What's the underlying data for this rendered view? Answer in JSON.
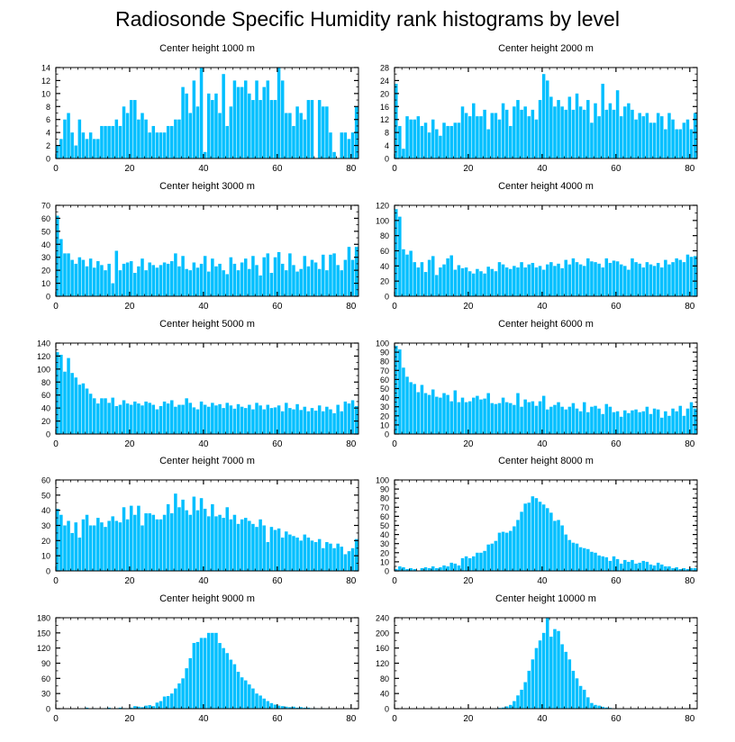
{
  "title": "Radiosonde Specific Humidity rank histograms by level",
  "colors": {
    "bar": "#00BFFF",
    "axis": "#000000",
    "background": "#FFFFFF"
  },
  "chart_data": [
    {
      "type": "bar",
      "title": "Center height 1000 m",
      "xlim": [
        0,
        82
      ],
      "ylim": [
        0,
        14
      ],
      "xticks": [
        0,
        20,
        40,
        60,
        80
      ],
      "yticks": [
        0,
        2,
        4,
        6,
        8,
        10,
        12,
        14
      ],
      "x_start": 0,
      "values": [
        2,
        3,
        6,
        7,
        4,
        2,
        6,
        4,
        3,
        4,
        3,
        3,
        5,
        5,
        5,
        5,
        6,
        5,
        8,
        7,
        9,
        9,
        6,
        7,
        6,
        4,
        5,
        4,
        4,
        4,
        5,
        5,
        6,
        6,
        11,
        10,
        7,
        12,
        8,
        14,
        1,
        10,
        9,
        10,
        7,
        13,
        5,
        8,
        12,
        11,
        11,
        12,
        10,
        9,
        12,
        9,
        11,
        12,
        9,
        9,
        14,
        12,
        7,
        7,
        5,
        8,
        7,
        6,
        9,
        9,
        0,
        9,
        8,
        8,
        4,
        1,
        0,
        4,
        4,
        3,
        4,
        8
      ]
    },
    {
      "type": "bar",
      "title": "Center height 2000 m",
      "xlim": [
        0,
        82
      ],
      "ylim": [
        0,
        28
      ],
      "xticks": [
        0,
        20,
        40,
        60,
        80
      ],
      "yticks": [
        0,
        4,
        8,
        12,
        16,
        20,
        24,
        28
      ],
      "x_start": 0,
      "values": [
        23,
        10,
        3,
        13,
        12,
        12,
        13,
        10,
        11,
        8,
        12,
        9,
        7,
        11,
        10,
        10,
        11,
        11,
        16,
        14,
        13,
        17,
        13,
        13,
        15,
        9,
        14,
        14,
        12,
        17,
        15,
        10,
        16,
        18,
        15,
        16,
        13,
        15,
        12,
        18,
        26,
        24,
        19,
        16,
        18,
        16,
        15,
        19,
        15,
        20,
        16,
        15,
        18,
        11,
        17,
        13,
        23,
        15,
        17,
        15,
        21,
        13,
        16,
        17,
        15,
        12,
        14,
        13,
        14,
        11,
        11,
        14,
        13,
        9,
        14,
        12,
        9,
        9,
        11,
        12,
        9,
        14
      ]
    },
    {
      "type": "bar",
      "title": "Center height 3000 m",
      "xlim": [
        0,
        82
      ],
      "ylim": [
        0,
        70
      ],
      "xticks": [
        0,
        20,
        40,
        60,
        80
      ],
      "yticks": [
        0,
        10,
        20,
        30,
        40,
        50,
        60,
        70
      ],
      "x_start": 0,
      "values": [
        62,
        44,
        33,
        33,
        28,
        25,
        30,
        28,
        23,
        29,
        22,
        27,
        24,
        20,
        25,
        10,
        35,
        20,
        25,
        26,
        27,
        18,
        23,
        29,
        20,
        26,
        24,
        22,
        24,
        26,
        25,
        27,
        33,
        23,
        31,
        21,
        20,
        26,
        22,
        25,
        31,
        19,
        29,
        23,
        25,
        20,
        17,
        30,
        25,
        20,
        26,
        29,
        21,
        31,
        24,
        16,
        30,
        33,
        18,
        30,
        34,
        25,
        20,
        33,
        24,
        19,
        21,
        31,
        23,
        28,
        26,
        21,
        32,
        20,
        32,
        33,
        24,
        20,
        28,
        38,
        28,
        38
      ]
    },
    {
      "type": "bar",
      "title": "Center height 4000 m",
      "xlim": [
        0,
        82
      ],
      "ylim": [
        0,
        120
      ],
      "xticks": [
        0,
        20,
        40,
        60,
        80
      ],
      "yticks": [
        0,
        20,
        40,
        60,
        80,
        100,
        120
      ],
      "x_start": 0,
      "values": [
        115,
        105,
        62,
        55,
        60,
        45,
        38,
        45,
        32,
        48,
        53,
        28,
        38,
        42,
        50,
        54,
        35,
        41,
        37,
        38,
        33,
        30,
        36,
        33,
        30,
        39,
        36,
        33,
        45,
        42,
        38,
        36,
        40,
        38,
        45,
        38,
        42,
        44,
        38,
        40,
        35,
        42,
        45,
        40,
        43,
        37,
        48,
        42,
        50,
        45,
        42,
        40,
        50,
        46,
        45,
        43,
        38,
        50,
        44,
        47,
        46,
        42,
        40,
        35,
        50,
        45,
        43,
        38,
        45,
        42,
        40,
        44,
        38,
        48,
        42,
        45,
        50,
        48,
        45,
        55,
        52,
        53
      ]
    },
    {
      "type": "bar",
      "title": "Center height 5000 m",
      "xlim": [
        0,
        82
      ],
      "ylim": [
        0,
        140
      ],
      "xticks": [
        0,
        20,
        40,
        60,
        80
      ],
      "yticks": [
        0,
        20,
        40,
        60,
        80,
        100,
        120,
        140
      ],
      "x_start": 0,
      "values": [
        126,
        122,
        96,
        117,
        94,
        87,
        76,
        78,
        70,
        62,
        55,
        47,
        55,
        55,
        48,
        56,
        43,
        45,
        52,
        47,
        45,
        50,
        47,
        44,
        50,
        48,
        45,
        38,
        43,
        50,
        47,
        52,
        42,
        45,
        45,
        55,
        48,
        41,
        38,
        50,
        45,
        42,
        48,
        44,
        46,
        40,
        48,
        44,
        39,
        46,
        42,
        40,
        45,
        38,
        48,
        44,
        38,
        45,
        40,
        41,
        44,
        35,
        48,
        40,
        38,
        46,
        37,
        42,
        35,
        40,
        36,
        44,
        35,
        42,
        38,
        32,
        45,
        35,
        50,
        47,
        52,
        43
      ]
    },
    {
      "type": "bar",
      "title": "Center height 6000 m",
      "xlim": [
        0,
        82
      ],
      "ylim": [
        0,
        100
      ],
      "xticks": [
        0,
        20,
        40,
        60,
        80
      ],
      "yticks": [
        0,
        10,
        20,
        30,
        40,
        50,
        60,
        70,
        80,
        90,
        100
      ],
      "x_start": 0,
      "values": [
        97,
        93,
        73,
        63,
        57,
        55,
        46,
        54,
        45,
        43,
        49,
        41,
        40,
        45,
        43,
        36,
        48,
        35,
        40,
        35,
        36,
        40,
        42,
        38,
        39,
        45,
        34,
        33,
        34,
        40,
        35,
        34,
        32,
        45,
        30,
        38,
        35,
        36,
        31,
        36,
        42,
        27,
        30,
        32,
        35,
        30,
        27,
        30,
        34,
        28,
        25,
        35,
        24,
        30,
        31,
        28,
        22,
        33,
        30,
        24,
        25,
        19,
        26,
        23,
        26,
        27,
        24,
        25,
        30,
        22,
        28,
        27,
        18,
        25,
        20,
        28,
        25,
        31,
        20,
        28,
        35,
        28
      ]
    },
    {
      "type": "bar",
      "title": "Center height 7000 m",
      "xlim": [
        0,
        82
      ],
      "ylim": [
        0,
        60
      ],
      "xticks": [
        0,
        20,
        40,
        60,
        80
      ],
      "yticks": [
        0,
        10,
        20,
        30,
        40,
        50,
        60
      ],
      "x_start": 0,
      "values": [
        41,
        37,
        30,
        33,
        25,
        32,
        22,
        34,
        37,
        30,
        30,
        35,
        32,
        29,
        33,
        36,
        33,
        32,
        42,
        34,
        43,
        37,
        43,
        30,
        38,
        38,
        37,
        34,
        34,
        37,
        44,
        38,
        51,
        42,
        47,
        40,
        37,
        49,
        40,
        48,
        41,
        36,
        44,
        36,
        37,
        35,
        42,
        34,
        37,
        31,
        34,
        35,
        33,
        31,
        29,
        34,
        30,
        19,
        29,
        27,
        28,
        22,
        26,
        24,
        23,
        22,
        20,
        24,
        22,
        20,
        19,
        21,
        15,
        19,
        18,
        15,
        18,
        16,
        11,
        13,
        15,
        21
      ]
    },
    {
      "type": "bar",
      "title": "Center height 8000 m",
      "xlim": [
        0,
        82
      ],
      "ylim": [
        0,
        100
      ],
      "xticks": [
        0,
        20,
        40,
        60,
        80
      ],
      "yticks": [
        0,
        10,
        20,
        30,
        40,
        50,
        60,
        70,
        80,
        90,
        100
      ],
      "x_start": 0,
      "values": [
        2,
        5,
        4,
        2,
        3,
        2,
        0,
        3,
        4,
        3,
        5,
        3,
        4,
        6,
        5,
        9,
        8,
        6,
        14,
        16,
        14,
        16,
        20,
        20,
        22,
        29,
        30,
        33,
        42,
        43,
        42,
        44,
        49,
        56,
        65,
        74,
        75,
        82,
        80,
        76,
        73,
        69,
        64,
        55,
        56,
        50,
        40,
        34,
        31,
        30,
        26,
        25,
        24,
        21,
        20,
        17,
        16,
        15,
        11,
        16,
        13,
        8,
        12,
        10,
        12,
        8,
        9,
        11,
        10,
        7,
        6,
        9,
        7,
        5,
        5,
        3,
        4,
        2,
        3,
        2,
        3,
        3
      ]
    },
    {
      "type": "bar",
      "title": "Center height 9000 m",
      "xlim": [
        0,
        82
      ],
      "ylim": [
        0,
        180
      ],
      "xticks": [
        0,
        20,
        40,
        60,
        80
      ],
      "yticks": [
        0,
        30,
        60,
        90,
        120,
        150,
        180
      ],
      "x_start": 0,
      "values": [
        0,
        0,
        0,
        0,
        0,
        0,
        0,
        0,
        2,
        0,
        1,
        0,
        0,
        1,
        2,
        0,
        1,
        2,
        1,
        0,
        2,
        5,
        4,
        3,
        6,
        7,
        5,
        12,
        15,
        24,
        25,
        30,
        40,
        50,
        60,
        80,
        100,
        130,
        132,
        140,
        140,
        150,
        150,
        150,
        130,
        120,
        110,
        97,
        88,
        73,
        62,
        56,
        48,
        40,
        30,
        26,
        20,
        15,
        11,
        8,
        6,
        5,
        4,
        3,
        4,
        2,
        3,
        2,
        2,
        1,
        1,
        0,
        1,
        0,
        0,
        0,
        0,
        0,
        0,
        0,
        0,
        0
      ]
    },
    {
      "type": "bar",
      "title": "Center height 10000 m",
      "xlim": [
        0,
        82
      ],
      "ylim": [
        0,
        240
      ],
      "xticks": [
        0,
        20,
        40,
        60,
        80
      ],
      "yticks": [
        0,
        40,
        80,
        120,
        160,
        200,
        240
      ],
      "x_start": 0,
      "values": [
        0,
        0,
        0,
        0,
        0,
        0,
        0,
        0,
        0,
        0,
        0,
        0,
        0,
        0,
        0,
        0,
        0,
        0,
        0,
        0,
        0,
        0,
        0,
        0,
        0,
        0,
        1,
        1,
        2,
        3,
        6,
        10,
        20,
        35,
        50,
        70,
        100,
        130,
        160,
        180,
        200,
        240,
        190,
        210,
        205,
        170,
        150,
        130,
        100,
        80,
        60,
        50,
        30,
        15,
        10,
        8,
        5,
        3,
        2,
        1,
        1,
        0,
        0,
        0,
        0,
        0,
        0,
        0,
        0,
        0,
        0,
        0,
        0,
        0,
        0,
        0,
        0,
        0,
        0,
        0,
        0,
        0
      ]
    }
  ]
}
